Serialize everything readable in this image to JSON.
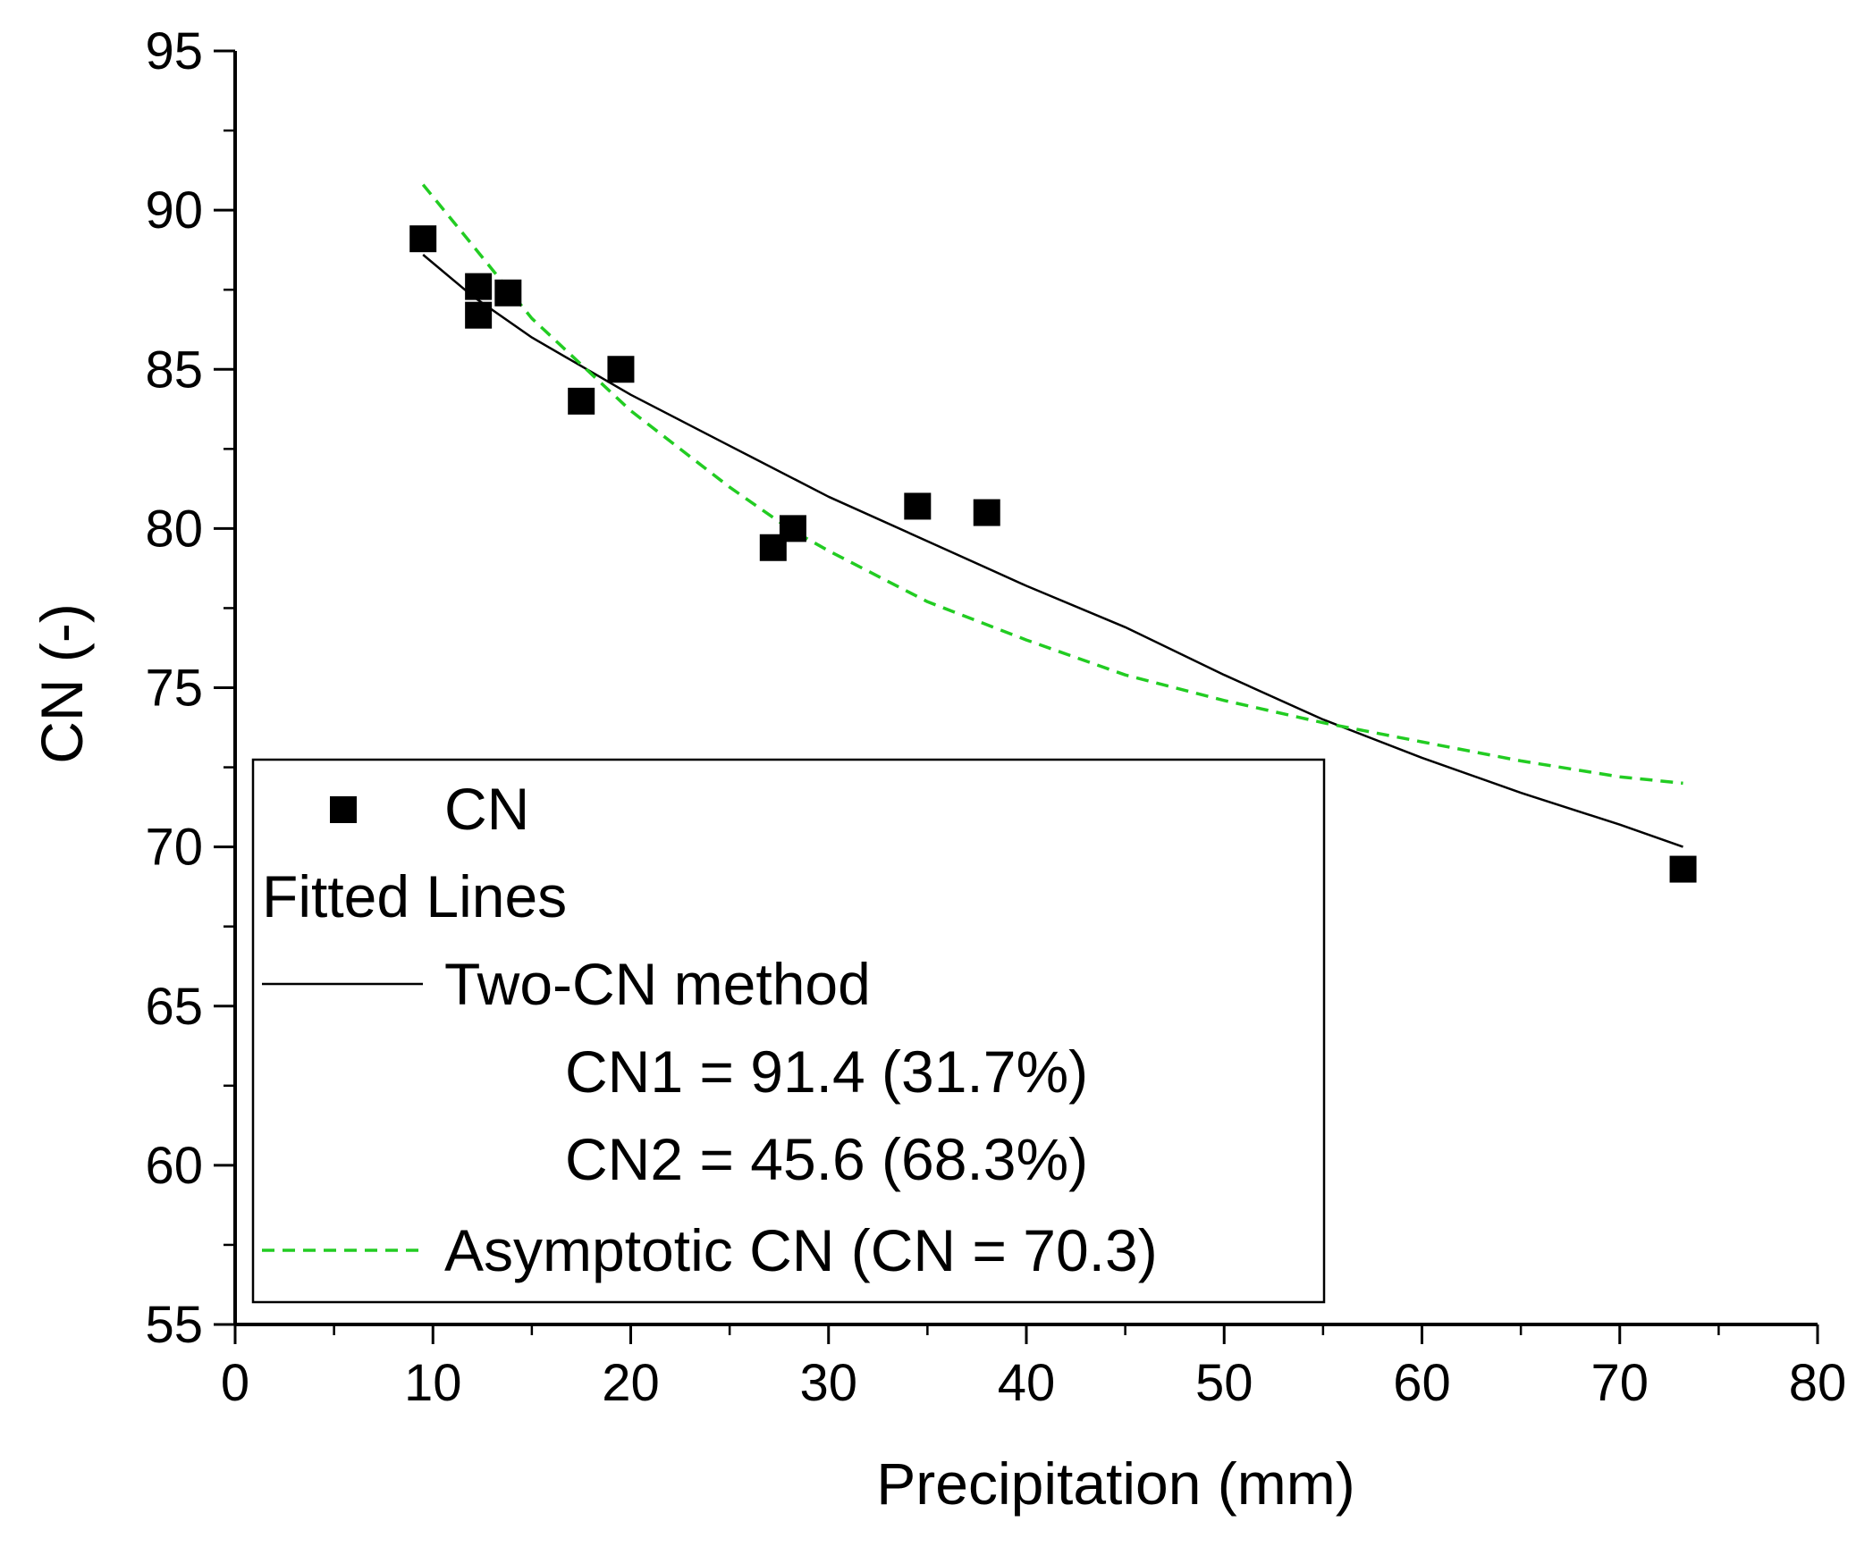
{
  "chart_data": {
    "type": "scatter",
    "title": "",
    "xlabel": "Precipitation (mm)",
    "ylabel": "CN (-)",
    "xlim": [
      0,
      80
    ],
    "ylim": [
      55,
      95
    ],
    "xticks": [
      0,
      10,
      20,
      30,
      40,
      50,
      60,
      70,
      80
    ],
    "yticks": [
      55,
      60,
      65,
      70,
      75,
      80,
      85,
      90,
      95
    ],
    "grid": false,
    "legend_position": "bottom-left",
    "series": [
      {
        "name": "CN",
        "kind": "scatter",
        "marker": "square",
        "color": "#000000",
        "points": [
          [
            9.5,
            89.1
          ],
          [
            12.3,
            87.6
          ],
          [
            12.3,
            86.7
          ],
          [
            13.8,
            87.4
          ],
          [
            17.5,
            84.0
          ],
          [
            19.5,
            85.0
          ],
          [
            27.2,
            79.4
          ],
          [
            28.2,
            80.0
          ],
          [
            34.5,
            80.7
          ],
          [
            38.0,
            80.5
          ],
          [
            73.2,
            69.3
          ]
        ]
      },
      {
        "name": "Two-CN method",
        "kind": "line",
        "style": "solid",
        "color": "#000000",
        "points": [
          [
            9.5,
            88.6
          ],
          [
            12,
            87.3
          ],
          [
            15,
            86.0
          ],
          [
            20,
            84.2
          ],
          [
            25,
            82.6
          ],
          [
            30,
            81.0
          ],
          [
            35,
            79.6
          ],
          [
            40,
            78.2
          ],
          [
            45,
            76.9
          ],
          [
            50,
            75.4
          ],
          [
            55,
            74.0
          ],
          [
            60,
            72.8
          ],
          [
            65,
            71.7
          ],
          [
            70,
            70.7
          ],
          [
            73.2,
            70.0
          ]
        ]
      },
      {
        "name": "Asymptotic CN (CN = 70.3)",
        "kind": "line",
        "style": "dashed",
        "color": "#22cc22",
        "points": [
          [
            9.5,
            90.8
          ],
          [
            12,
            88.9
          ],
          [
            15,
            86.6
          ],
          [
            20,
            83.7
          ],
          [
            25,
            81.3
          ],
          [
            28,
            80.0
          ],
          [
            30,
            79.3
          ],
          [
            35,
            77.7
          ],
          [
            40,
            76.5
          ],
          [
            45,
            75.4
          ],
          [
            50,
            74.6
          ],
          [
            55,
            73.9
          ],
          [
            60,
            73.3
          ],
          [
            65,
            72.7
          ],
          [
            70,
            72.2
          ],
          [
            73.2,
            72.0
          ]
        ]
      }
    ],
    "legend": {
      "header": "Fitted Lines",
      "entries": [
        {
          "label": "CN",
          "symbol": "square",
          "color": "#000000"
        },
        {
          "label": "Two-CN method",
          "symbol": "solid-line",
          "color": "#000000"
        },
        {
          "label": "Asymptotic CN (CN = 70.3)",
          "symbol": "dashed-line",
          "color": "#22cc22"
        }
      ],
      "annotations": [
        "CN1 = 91.4 (31.7%)",
        "CN2 = 45.6 (68.3%)"
      ]
    }
  }
}
